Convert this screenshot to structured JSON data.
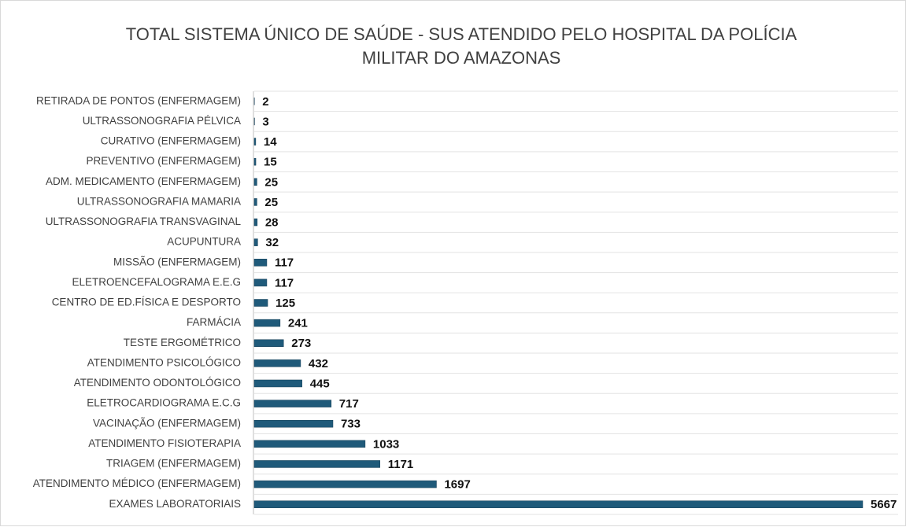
{
  "chart_data": {
    "type": "bar",
    "orientation": "horizontal",
    "title": "TOTAL SISTEMA ÚNICO DE SAÚDE - SUS ATENDIDO PELO HOSPITAL DA POLÍCIA MILITAR DO AMAZONAS",
    "categories": [
      "RETIRADA DE PONTOS (ENFERMAGEM)",
      "ULTRASSONOGRAFIA PÉLVICA",
      "CURATIVO (ENFERMAGEM)",
      "PREVENTIVO (ENFERMAGEM)",
      "ADM. MEDICAMENTO (ENFERMAGEM)",
      "ULTRASSONOGRAFIA MAMARIA",
      "ULTRASSONOGRAFIA TRANSVAGINAL",
      "ACUPUNTURA",
      "MISSÃO (ENFERMAGEM)",
      "ELETROENCEFALOGRAMA E.E.G",
      "CENTRO DE ED.FÍSICA E DESPORTO",
      "FARMÁCIA",
      "TESTE ERGOMÉTRICO",
      "ATENDIMENTO PSICOLÓGICO",
      "ATENDIMENTO ODONTOLÓGICO",
      "ELETROCARDIOGRAMA E.C.G",
      "VACINAÇÃO (ENFERMAGEM)",
      "ATENDIMENTO FISIOTERAPIA",
      "TRIAGEM (ENFERMAGEM)",
      "ATENDIMENTO MÉDICO (ENFERMAGEM)",
      "EXAMES LABORATORIAIS"
    ],
    "values": [
      2,
      3,
      14,
      15,
      25,
      25,
      28,
      32,
      117,
      117,
      125,
      241,
      273,
      432,
      445,
      717,
      733,
      1033,
      1171,
      1697,
      5667
    ],
    "color": "#1f5a7a"
  }
}
